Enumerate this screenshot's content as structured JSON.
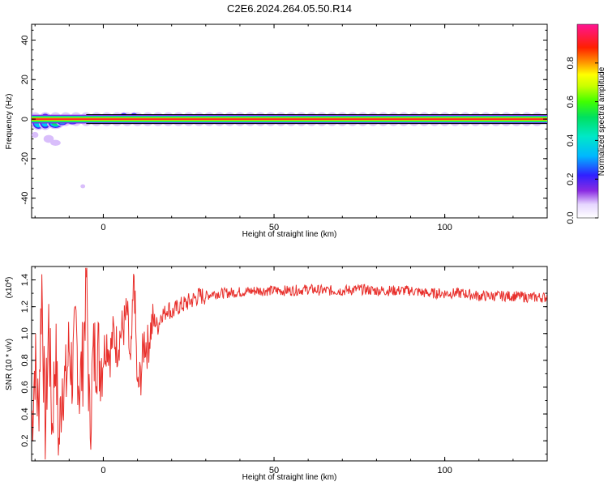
{
  "title": "C2E6.2024.264.05.50.R14",
  "colorbar": {
    "label": "Normalized spectral amplitude",
    "range": [
      0,
      1
    ],
    "ticks": [
      0.0,
      0.2,
      0.4,
      0.6,
      0.8
    ],
    "tick_labels": [
      "0.0",
      "0.2",
      "0.4",
      "0.6",
      "0.8"
    ]
  },
  "chart_data": [
    {
      "type": "heatmap",
      "xlabel": "Height of straight line (km)",
      "ylabel": "Frequency (Hz)",
      "xlim": [
        -21,
        130
      ],
      "ylim": [
        -50,
        48
      ],
      "x_ticks": [
        0,
        50,
        100
      ],
      "y_ticks": [
        -40,
        -20,
        0,
        20,
        40
      ],
      "x_tick_labels": [
        "0",
        "50",
        "100"
      ],
      "y_tick_labels": [
        "-40",
        "-20",
        "0",
        "20",
        "40"
      ],
      "ridge_frequency_hz": 0,
      "ridge_x_range": [
        -21,
        130
      ],
      "blobs": [
        {
          "x": -19,
          "y": -2,
          "rx": 2.0,
          "ry": 3.5,
          "value": 0.35
        },
        {
          "x": -17,
          "y": -1,
          "rx": 2.0,
          "ry": 4.5,
          "value": 0.3
        },
        {
          "x": -14,
          "y": -2,
          "rx": 2.5,
          "ry": 3.0,
          "value": 0.45
        },
        {
          "x": -12,
          "y": -1,
          "rx": 2.0,
          "ry": 2.5,
          "value": 0.55
        },
        {
          "x": -9,
          "y": -1,
          "rx": 2.0,
          "ry": 2.0,
          "value": 0.6
        },
        {
          "x": -6,
          "y": 0,
          "rx": 1.5,
          "ry": 2.5,
          "value": 0.5
        },
        {
          "x": -16,
          "y": -10,
          "rx": 1.5,
          "ry": 2.0,
          "value": 0.12
        },
        {
          "x": -14,
          "y": -12,
          "rx": 1.5,
          "ry": 1.5,
          "value": 0.1
        },
        {
          "x": -20,
          "y": -8,
          "rx": 1.0,
          "ry": 1.5,
          "value": 0.08
        },
        {
          "x": -16,
          "y": -22,
          "rx": 0.6,
          "ry": 0.6,
          "value": 0.02
        },
        {
          "x": -6,
          "y": -34,
          "rx": 0.7,
          "ry": 1.0,
          "value": 0.05
        },
        {
          "x": 6,
          "y": 1,
          "rx": 1.5,
          "ry": 2.5,
          "value": 0.55
        },
        {
          "x": 9,
          "y": 1,
          "rx": 1.5,
          "ry": 2.5,
          "value": 0.5
        },
        {
          "x": 11,
          "y": 0,
          "rx": 1.5,
          "ry": 2.0,
          "value": 0.4
        }
      ]
    },
    {
      "type": "line",
      "xlabel": "Height of straight line (km)",
      "ylabel": "SNR (10 * v/v)",
      "scale_label": "(x10",
      "scale_exponent": "4",
      "xlim": [
        -21,
        130
      ],
      "ylim": [
        0.05,
        1.5
      ],
      "x_ticks": [
        0,
        50,
        100
      ],
      "y_ticks": [
        0.2,
        0.4,
        0.6,
        0.8,
        1.0,
        1.2,
        1.4
      ],
      "x_tick_labels": [
        "0",
        "50",
        "100"
      ],
      "y_tick_labels": [
        "0.2",
        "0.4",
        "0.6",
        "0.8",
        "1.0",
        "1.2",
        "1.4"
      ],
      "series_color": "#e8302c",
      "x": [
        -21,
        -20,
        -19,
        -18,
        -17,
        -16,
        -15,
        -14,
        -13,
        -12,
        -11,
        -10,
        -9,
        -8,
        -7,
        -6,
        -5,
        -4,
        -3,
        -2,
        -1,
        0,
        1,
        2,
        3,
        4,
        5,
        6,
        7,
        8,
        9,
        10,
        11,
        12,
        13,
        14,
        15,
        16,
        17,
        18,
        19,
        20,
        22,
        24,
        26,
        28,
        30,
        32,
        35,
        40,
        45,
        50,
        55,
        60,
        65,
        70,
        75,
        80,
        85,
        90,
        95,
        100,
        105,
        110,
        115,
        120,
        125,
        130
      ],
      "y": [
        0.3,
        0.8,
        0.4,
        1.4,
        0.2,
        1.1,
        0.3,
        0.9,
        0.15,
        0.7,
        0.6,
        0.9,
        0.7,
        1.0,
        0.6,
        0.8,
        1.45,
        0.3,
        0.8,
        0.9,
        0.8,
        0.85,
        0.95,
        0.85,
        1.0,
        0.9,
        1.0,
        1.05,
        1.15,
        0.7,
        1.45,
        0.55,
        0.7,
        0.95,
        0.9,
        1.05,
        1.1,
        1.05,
        1.15,
        1.15,
        1.2,
        1.15,
        1.2,
        1.22,
        1.25,
        1.28,
        1.28,
        1.3,
        1.3,
        1.31,
        1.32,
        1.32,
        1.32,
        1.33,
        1.32,
        1.32,
        1.33,
        1.32,
        1.32,
        1.32,
        1.3,
        1.3,
        1.3,
        1.28,
        1.28,
        1.28,
        1.27,
        1.27
      ]
    }
  ]
}
